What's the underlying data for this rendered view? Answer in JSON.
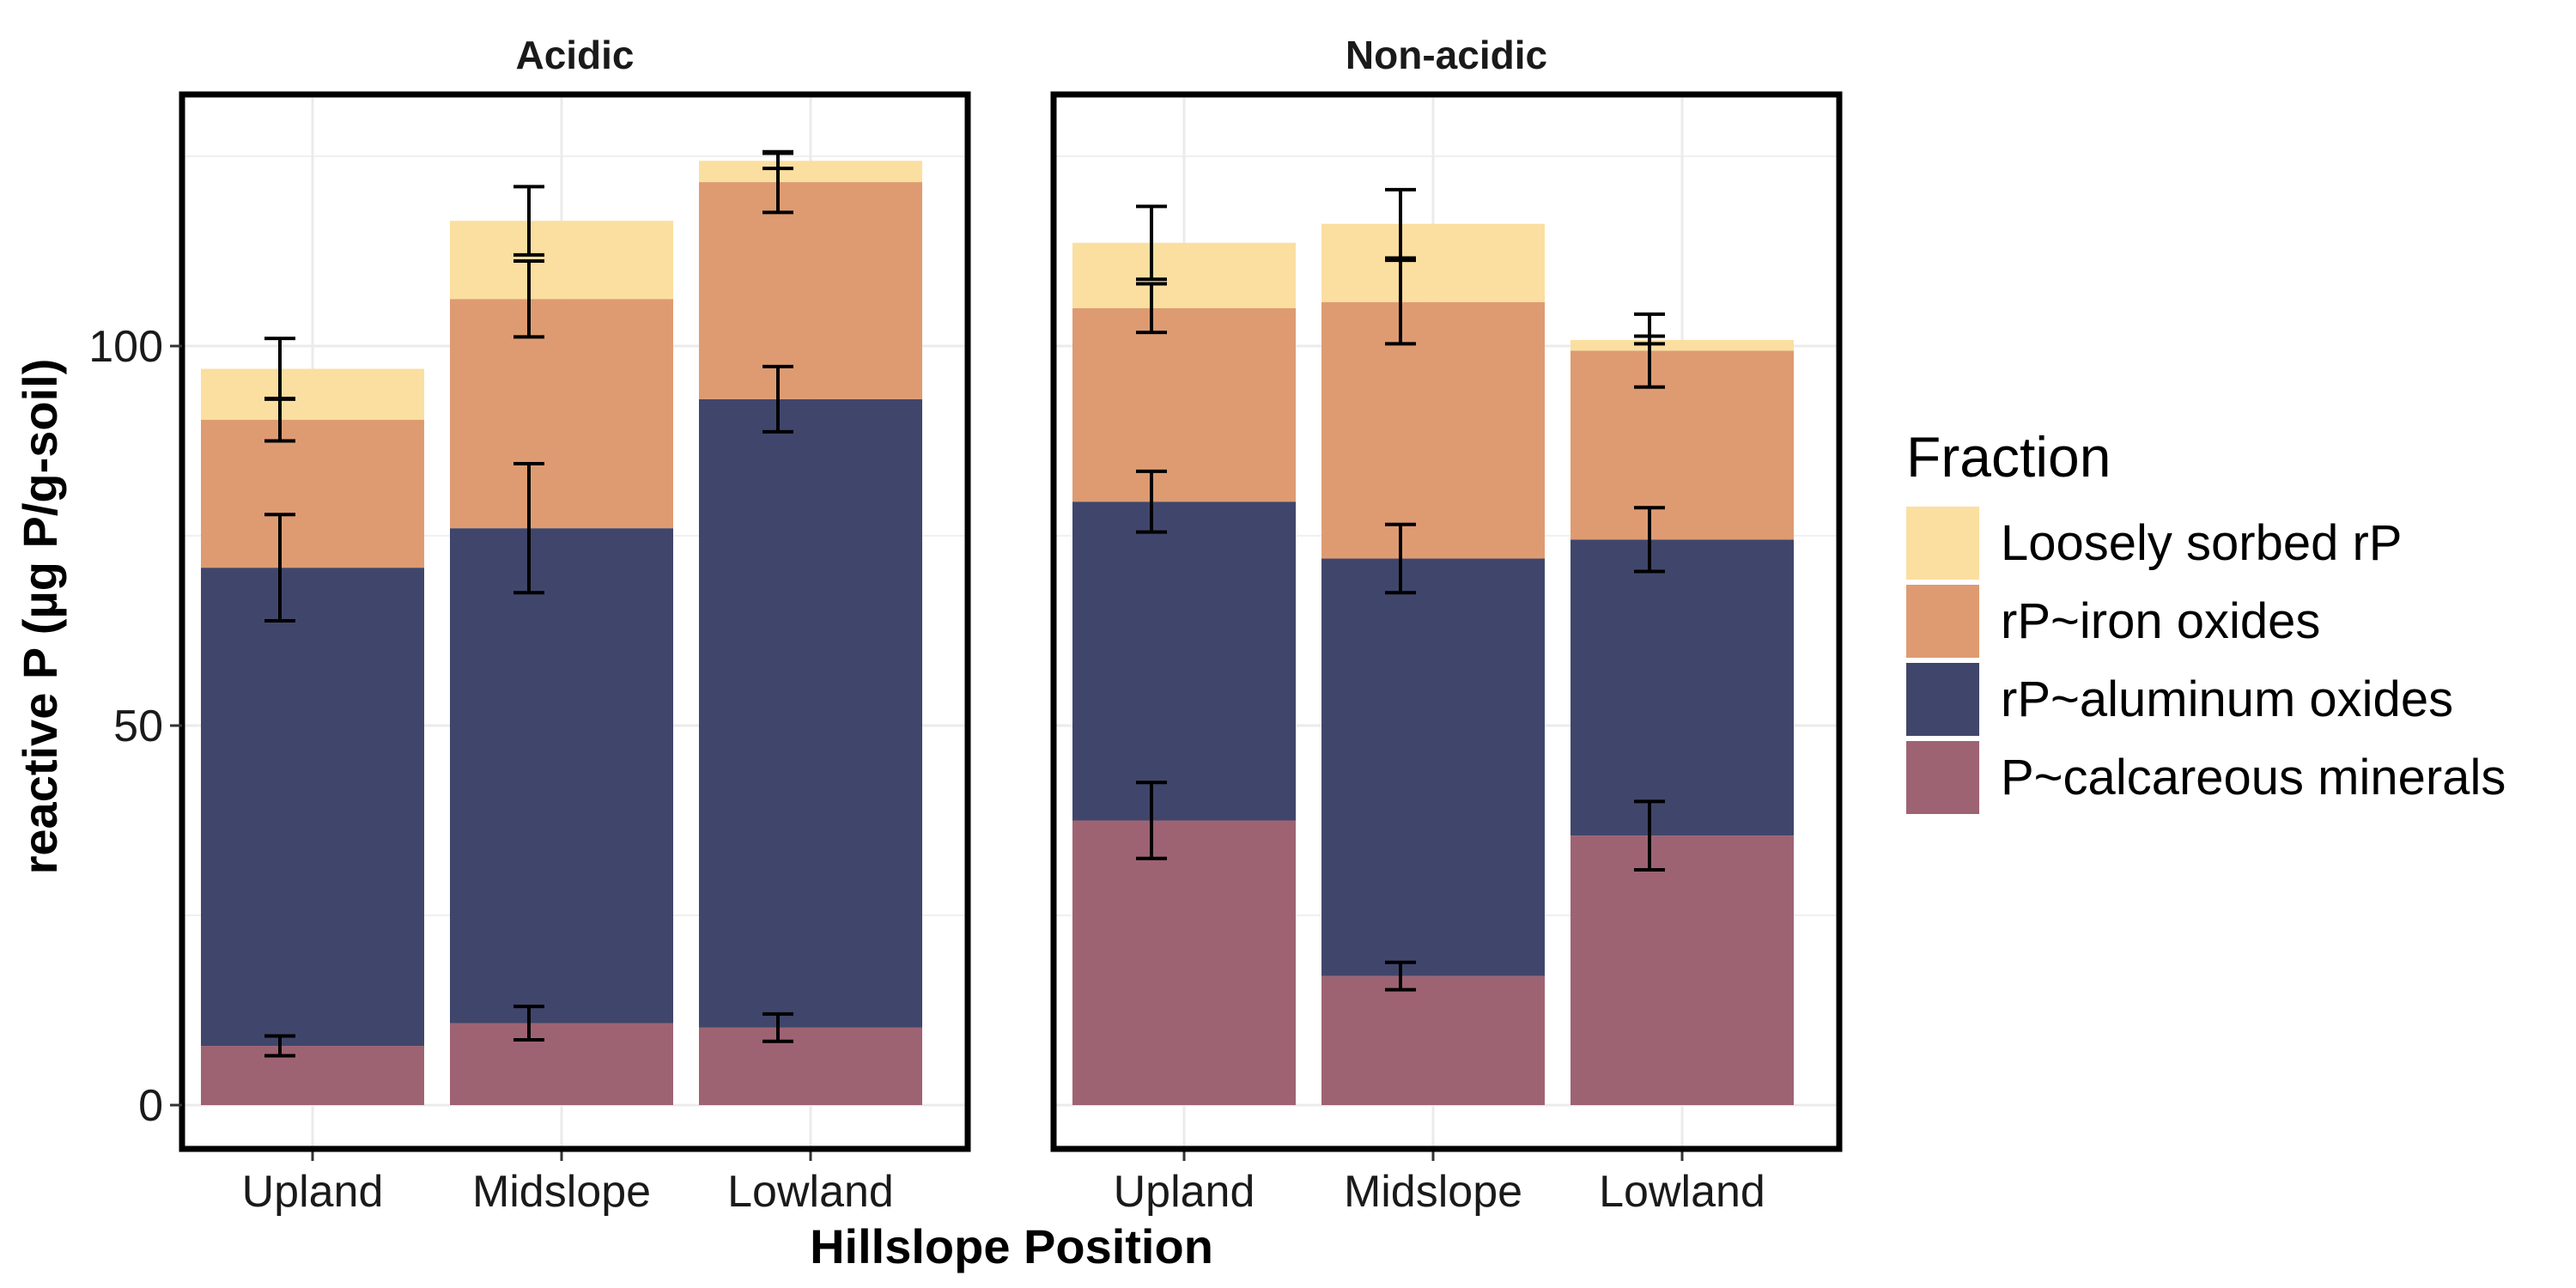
{
  "chart_data": {
    "type": "bar",
    "stacked": true,
    "facets": [
      "Acidic",
      "Non-acidic"
    ],
    "categories": [
      "Upland",
      "Midslope",
      "Lowland"
    ],
    "xlabel": "Hillslope Position",
    "ylabel": "reactive P (µg P/g-soil)",
    "ylim": [
      0,
      130
    ],
    "yticks": [
      0,
      50,
      100
    ],
    "grid": true,
    "legend": {
      "title": "Fraction",
      "position": "right",
      "order": [
        "Loosely sorbed rP",
        "rP~iron oxides",
        "rP~aluminum oxides",
        "P~calcareous minerals"
      ]
    },
    "series": [
      {
        "name": "P~calcareous minerals",
        "color": "#9E6373",
        "values": {
          "Acidic": [
            7.8,
            10.8,
            10.2
          ],
          "Non-acidic": [
            37.5,
            17,
            35.5
          ]
        },
        "error": {
          "Acidic": [
            1.3,
            2.2,
            1.8
          ],
          "Non-acidic": [
            5,
            1.8,
            4.5
          ]
        }
      },
      {
        "name": "rP~aluminum oxides",
        "color": "#40466B",
        "values": {
          "Acidic": [
            63,
            65.2,
            82.8
          ],
          "Non-acidic": [
            42,
            55,
            39
          ]
        },
        "error": {
          "Acidic": [
            7,
            8.5,
            4.3
          ],
          "Non-acidic": [
            4,
            4.5,
            4.2
          ]
        }
      },
      {
        "name": "rP~iron oxides",
        "color": "#DE9B72",
        "values": {
          "Acidic": [
            19.5,
            30.2,
            28.6
          ],
          "Non-acidic": [
            25.5,
            33.8,
            24.9
          ]
        },
        "error": {
          "Acidic": [
            2.8,
            5,
            4
          ],
          "Non-acidic": [
            3.2,
            5.5,
            4.8
          ]
        }
      },
      {
        "name": "Loosely sorbed rP",
        "color": "#FADFA0",
        "values": {
          "Acidic": [
            6.7,
            10.3,
            2.8
          ],
          "Non-acidic": [
            8.6,
            10.3,
            1.4
          ]
        },
        "error": {
          "Acidic": [
            4,
            4.5,
            1
          ],
          "Non-acidic": [
            4.8,
            4.5,
            0.5
          ]
        }
      }
    ]
  }
}
